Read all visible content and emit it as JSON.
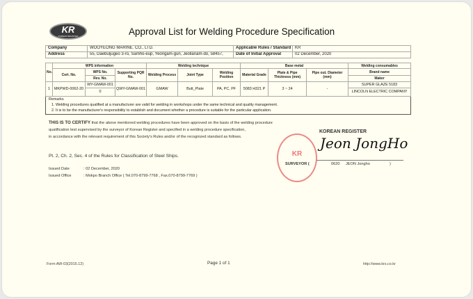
{
  "logo": {
    "text": "KR",
    "subtext": "KOREAN REGISTER"
  },
  "title": "Approval List for Welding Procedure Specification",
  "info": {
    "company_label": "Company",
    "company": "WOOYEONG MARINE. CO., LTD.",
    "address_label": "Address",
    "address": "55, Daebuljugeo 3-ro, Samho-eup, Yeongam-gun, Jeollanam-do, 58457,",
    "rules_label": "Applicable Rules / Standard",
    "rules": "KR",
    "date_label": "Date of Initial Approval",
    "date": "02 December, 2020"
  },
  "table": {
    "headers": {
      "no": "No.",
      "cert": "Cert. No.",
      "wps_info": "WPS information",
      "wps_no": "WPS No.",
      "rev_no": "Rev. No.",
      "pqr": "Supporting PQR No.",
      "technique": "Welding technique",
      "process": "Welding Process",
      "joint": "Joint Type",
      "position": "Welding Position",
      "base": "Base metal",
      "grade": "Material Grade",
      "thickness": "Plate & Pipe Thickness (mm)",
      "diameter": "Pipe out. Diameter (mm)",
      "consumables": "Welding consumables",
      "brand": "Brand name",
      "maker": "Maker"
    },
    "rows": [
      {
        "no": "1",
        "cert": "MKPWD-0062-20",
        "wps_no": "WY-GMAW-001",
        "rev_no": "0",
        "pqr": "QWY-GMAW-001",
        "process": "GMAW",
        "joint": "Butt_Plate",
        "position": "PA, PC, PF",
        "grade": "5083 H321 P",
        "thickness": "3 ~ 24",
        "diameter": "-",
        "brand": "SUPER GLAZE 5183",
        "maker": "LINCOLN ELECTRIC COMPANY"
      }
    ],
    "remarks_label": "Remarks",
    "remarks": [
      "1. Welding procedures qualified at a manufacturer are valid for welding in workshops under the same technical and quality management.",
      "2. It is to be the manufacturer's responsibility to establish and document whether a procedure is suitable for the particular application."
    ]
  },
  "certify": {
    "lead": "THIS IS TO CERTIFY",
    "line1": " that the above mentioned welding procedures have been approved on the basis of the welding procedure",
    "line2": "qualification test supervised by the surveyor of Korean Register and specified in a welding procedure specification,",
    "line3": "in accordance with the relevant requirement of this Society's Rules and/or of the recognized standard as follows."
  },
  "rules_ref": "Pt. 2, Ch. 2, Sec. 4 of the Rules for Classification of Steel Ships.",
  "issued": {
    "date_label": "Issued Date",
    "date": ": 02 December, 2020",
    "office_label": "Issued Office",
    "office": ": Mokpo Branch Office ( Tel.070-8799-7768 , Fax.070-8799-7769 )"
  },
  "signature": {
    "org": "KOREAN REGISTER",
    "sig": "Jeon Jong Ho",
    "surveyor_label": "SURVEYOR (",
    "id": "0620",
    "name": "JEON Jongho",
    "close": ")"
  },
  "footer": {
    "form": "Form AW-03(2015.12)",
    "page": "Page  1  of  1",
    "url": "http://www.krs.co.kr"
  }
}
